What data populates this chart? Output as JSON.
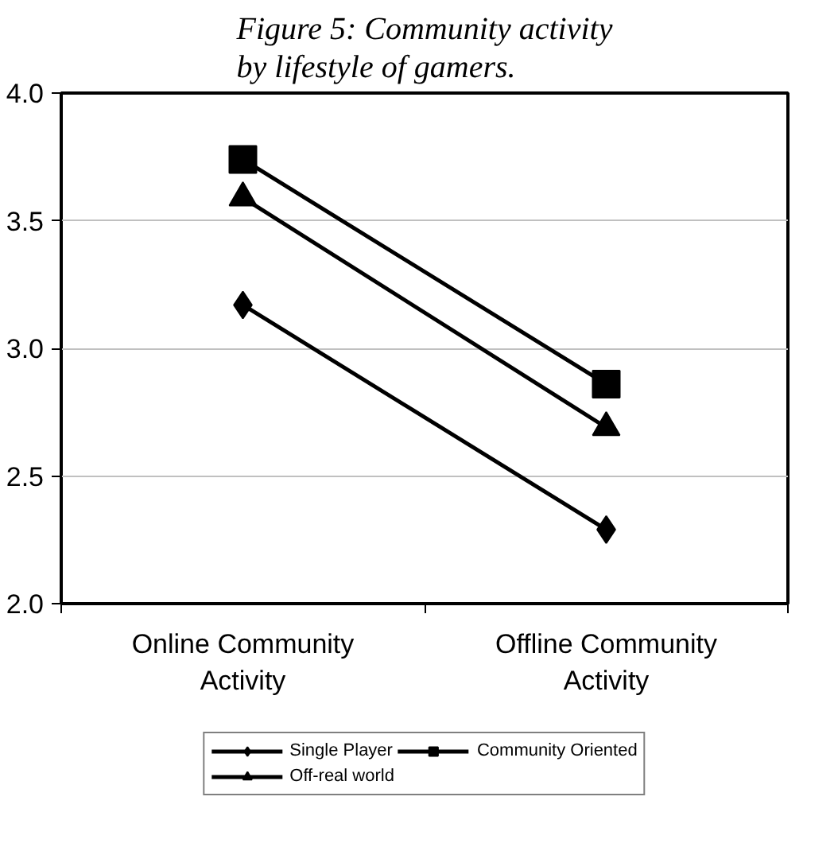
{
  "chart_data": {
    "type": "line",
    "title": "Figure 5: Community activity by lifestyle of gamers.",
    "categories": [
      "Online Community Activity",
      "Offline Community Activity"
    ],
    "series": [
      {
        "name": "Single Player",
        "color": "#000000",
        "values": [
          3.17,
          2.29
        ],
        "marker": "diamond"
      },
      {
        "name": "Community Oriented",
        "color": "#000000",
        "values": [
          3.74,
          2.86
        ],
        "marker": "square"
      },
      {
        "name": "Off-real world",
        "color": "#000000",
        "values": [
          3.59,
          2.69
        ],
        "marker": "triangle"
      }
    ],
    "ylim": [
      2.0,
      4.0
    ],
    "yticks": [
      {
        "value": 2.0,
        "label": "2.0"
      },
      {
        "value": 2.5,
        "label": "2.5"
      },
      {
        "value": 3.0,
        "label": "3.0"
      },
      {
        "value": 3.5,
        "label": "3.5"
      },
      {
        "value": 4.0,
        "label": "4.0"
      }
    ],
    "grid": "y",
    "legend": "bottom",
    "line_style": "solid"
  }
}
